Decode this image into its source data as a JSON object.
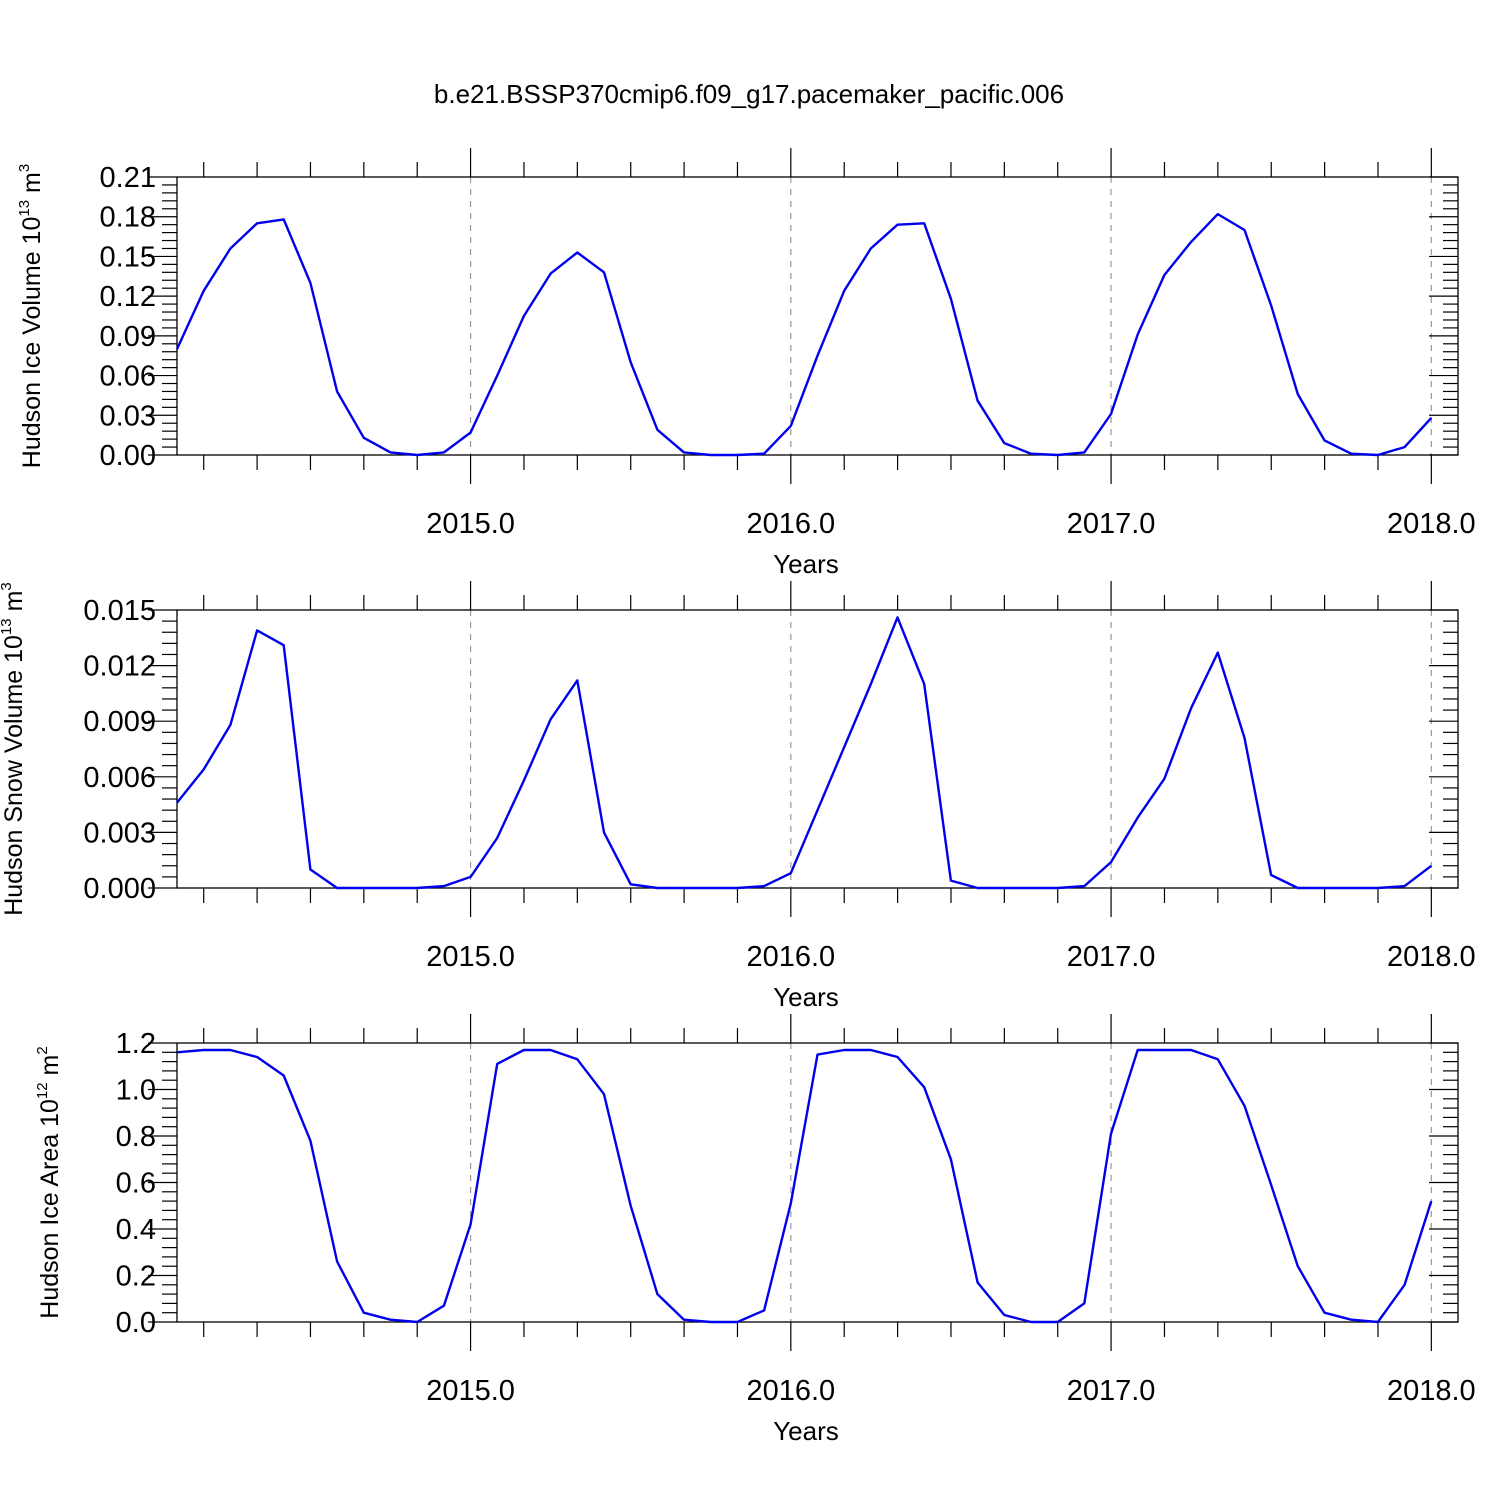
{
  "title": "b.e21.BSSP370cmip6.f09_g17.pacemaker_pacific.006",
  "chart_data": [
    {
      "type": "line",
      "ylabel": "Hudson Ice Volume 10",
      "ylabel_exp": "13",
      "ylabel_unit": " m",
      "ylabel_unit_exp": "3",
      "xlabel": "Years",
      "xlim": [
        2014.0833,
        2018.0833
      ],
      "ylim": [
        0,
        0.21
      ],
      "yticks": [
        0.0,
        0.03,
        0.06,
        0.09,
        0.12,
        0.15,
        0.18,
        0.21
      ],
      "ytick_labels": [
        "0.00",
        "0.03",
        "0.06",
        "0.09",
        "0.12",
        "0.15",
        "0.18",
        "0.21"
      ],
      "xticks": [
        2015.0,
        2016.0,
        2017.0,
        2018.0
      ],
      "xtick_labels": [
        "2015.0",
        "2016.0",
        "2017.0",
        "2018.0"
      ],
      "grid": "vertical dashed at major x ticks",
      "series": [
        {
          "color": "#0000ee",
          "x_start": 2014.0833,
          "x_step": 0.08333,
          "values": [
            0.08,
            0.124,
            0.156,
            0.175,
            0.178,
            0.13,
            0.048,
            0.013,
            0.002,
            0.0,
            0.002,
            0.017,
            0.06,
            0.105,
            0.137,
            0.153,
            0.138,
            0.07,
            0.019,
            0.002,
            0.0,
            0.0,
            0.001,
            0.022,
            0.075,
            0.124,
            0.156,
            0.174,
            0.175,
            0.118,
            0.041,
            0.009,
            0.001,
            0.0,
            0.002,
            0.031,
            0.091,
            0.136,
            0.161,
            0.182,
            0.17,
            0.113,
            0.046,
            0.011,
            0.001,
            0.0,
            0.006,
            0.028
          ]
        }
      ]
    },
    {
      "type": "line",
      "ylabel": "Hudson Snow Volume 10",
      "ylabel_exp": "13",
      "ylabel_unit": " m",
      "ylabel_unit_exp": "3",
      "xlabel": "Years",
      "xlim": [
        2014.0833,
        2018.0833
      ],
      "ylim": [
        0,
        0.015
      ],
      "yticks": [
        0.0,
        0.003,
        0.006,
        0.009,
        0.012,
        0.015
      ],
      "ytick_labels": [
        "0.000",
        "0.003",
        "0.006",
        "0.009",
        "0.012",
        "0.015"
      ],
      "xticks": [
        2015.0,
        2016.0,
        2017.0,
        2018.0
      ],
      "xtick_labels": [
        "2015.0",
        "2016.0",
        "2017.0",
        "2018.0"
      ],
      "grid": "vertical dashed at major x ticks",
      "series": [
        {
          "color": "#0000ee",
          "x_start": 2014.0833,
          "x_step": 0.08333,
          "values": [
            0.0046,
            0.0064,
            0.0088,
            0.0139,
            0.0131,
            0.001,
            0.0,
            0.0,
            0.0,
            0.0,
            0.0001,
            0.0006,
            0.0027,
            0.0058,
            0.0091,
            0.0112,
            0.003,
            0.0002,
            0.0,
            0.0,
            0.0,
            0.0,
            0.0001,
            0.0008,
            0.0042,
            0.0076,
            0.011,
            0.0146,
            0.011,
            0.0004,
            0.0,
            0.0,
            0.0,
            0.0,
            0.0001,
            0.0014,
            0.0038,
            0.0059,
            0.0097,
            0.0127,
            0.0081,
            0.0007,
            0.0,
            0.0,
            0.0,
            0.0,
            0.0001,
            0.0012
          ]
        }
      ]
    },
    {
      "type": "line",
      "ylabel": "Hudson Ice Area 10",
      "ylabel_exp": "12",
      "ylabel_unit": " m",
      "ylabel_unit_exp": "2",
      "xlabel": "Years",
      "xlim": [
        2014.0833,
        2018.0833
      ],
      "ylim": [
        0,
        1.2
      ],
      "yticks": [
        0.0,
        0.2,
        0.4,
        0.6,
        0.8,
        1.0,
        1.2
      ],
      "ytick_labels": [
        "0.0",
        "0.2",
        "0.4",
        "0.6",
        "0.8",
        "1.0",
        "1.2"
      ],
      "xticks": [
        2015.0,
        2016.0,
        2017.0,
        2018.0
      ],
      "xtick_labels": [
        "2015.0",
        "2016.0",
        "2017.0",
        "2018.0"
      ],
      "grid": "vertical dashed at major x ticks",
      "series": [
        {
          "color": "#0000ee",
          "x_start": 2014.0833,
          "x_step": 0.08333,
          "values": [
            1.16,
            1.17,
            1.17,
            1.14,
            1.06,
            0.78,
            0.26,
            0.04,
            0.01,
            0.0,
            0.07,
            0.42,
            1.11,
            1.17,
            1.17,
            1.13,
            0.98,
            0.5,
            0.12,
            0.01,
            0.0,
            0.0,
            0.05,
            0.51,
            1.15,
            1.17,
            1.17,
            1.14,
            1.01,
            0.7,
            0.17,
            0.03,
            0.0,
            0.0,
            0.08,
            0.81,
            1.17,
            1.17,
            1.17,
            1.13,
            0.93,
            0.59,
            0.24,
            0.04,
            0.01,
            0.0,
            0.16,
            0.52
          ]
        }
      ]
    }
  ]
}
